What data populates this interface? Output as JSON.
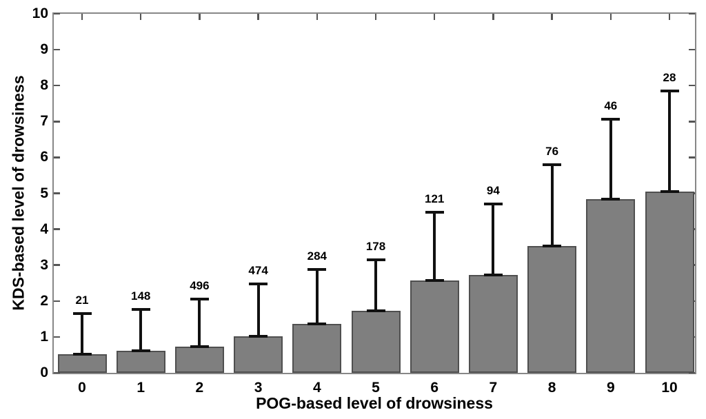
{
  "chart_data": {
    "type": "bar",
    "title": "",
    "xlabel": "POG-based level of drowsiness",
    "ylabel": "KDS-based level of drowsiness",
    "categories": [
      "0",
      "1",
      "2",
      "3",
      "4",
      "5",
      "6",
      "7",
      "8",
      "9",
      "10"
    ],
    "values": [
      0.52,
      0.61,
      0.72,
      1.02,
      1.37,
      1.72,
      2.58,
      2.73,
      3.53,
      4.84,
      5.05
    ],
    "whisker_top": [
      1.65,
      1.76,
      2.06,
      2.48,
      2.87,
      3.15,
      4.48,
      4.71,
      5.79,
      7.07,
      7.85
    ],
    "bar_counts": [
      "21",
      "148",
      "496",
      "474",
      "284",
      "178",
      "121",
      "94",
      "76",
      "46",
      "28"
    ],
    "yticks": [
      "0",
      "1",
      "2",
      "3",
      "4",
      "5",
      "6",
      "7",
      "8",
      "9",
      "10"
    ],
    "ylim": [
      0,
      10
    ],
    "grid": false,
    "legend": null,
    "layout_hint": "error bars extend upward only, from bar top to whisker_top; counts printed above each whisker",
    "colors": {
      "bar_fill": "#7f7f7f",
      "bar_edge": "#4f4f4f",
      "error_bar": "#111111",
      "frame": "#878787",
      "tick": "#555555",
      "text": "#000000",
      "background": "#ffffff"
    }
  }
}
